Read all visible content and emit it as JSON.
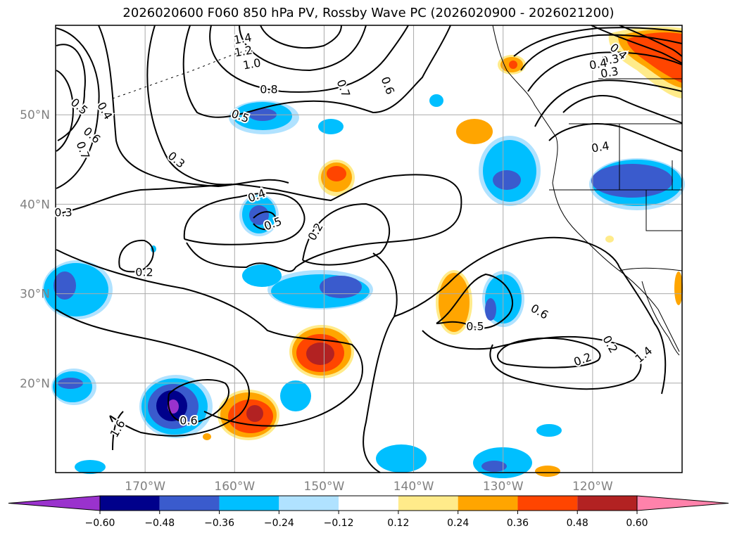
{
  "title": "2026020600 F060 850 hPa PV, Rossby Wave PC (2026020900 - 2026021200)",
  "map": {
    "lon_range": [
      -180,
      -110
    ],
    "lat_range": [
      10,
      60
    ],
    "lat_labels": [
      {
        "lat": 50,
        "text": "50°N"
      },
      {
        "lat": 40,
        "text": "40°N"
      },
      {
        "lat": 30,
        "text": "30°N"
      },
      {
        "lat": 20,
        "text": "20°N"
      }
    ],
    "lon_labels": [
      {
        "lon": -170,
        "text": "170°W"
      },
      {
        "lon": -160,
        "text": "160°W"
      },
      {
        "lon": -150,
        "text": "150°W"
      },
      {
        "lon": -140,
        "text": "140°W"
      },
      {
        "lon": -130,
        "text": "130°W"
      },
      {
        "lon": -120,
        "text": "120°W"
      }
    ],
    "gridlines": true
  },
  "contour_labels": [
    "1.4",
    "1.2",
    "1.0",
    "0.8",
    "0.7",
    "0.6",
    "0.5",
    "0.4",
    "0.6",
    "0.7",
    "0.3",
    "0.3",
    "0.4",
    "0.5",
    "0.2",
    "0.2",
    "0.5",
    "0.4",
    "0.5",
    "0.6",
    "0.2",
    "0.2",
    "1.4",
    "1.6",
    "0.6",
    "0.4",
    "0.3",
    "0.4",
    "0.3"
  ],
  "colorbar": {
    "ticks": [
      "−0.60",
      "−0.48",
      "−0.36",
      "−0.24",
      "−0.12",
      "0.12",
      "0.24",
      "0.36",
      "0.48",
      "0.60"
    ],
    "colors": [
      "#9a32cd",
      "#00008b",
      "#3a5bcd",
      "#00bfff",
      "#b0e2ff",
      "#ffffff",
      "#ffeb8a",
      "#ffa500",
      "#ff4500",
      "#b22222",
      "#ff82ab"
    ]
  },
  "fill_colors": {
    "neg_light": "#b0e2ff",
    "neg_mid": "#00bfff",
    "neg_dark": "#3a5bcd",
    "neg_darker": "#00008b",
    "neg_min": "#9a32cd",
    "pos_light": "#ffeb8a",
    "pos_mid": "#ffa500",
    "pos_dark": "#ff4500",
    "pos_darker": "#b22222"
  }
}
